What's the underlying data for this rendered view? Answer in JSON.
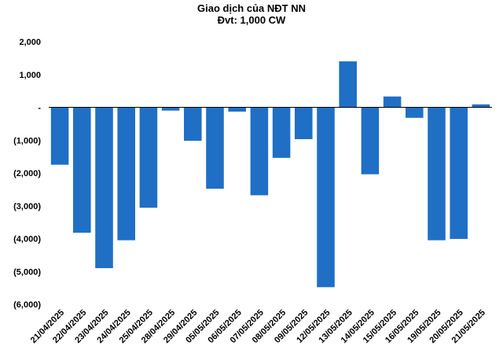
{
  "chart_data": {
    "type": "bar",
    "title": "Giao dịch của NĐT NN",
    "subtitle": "Đvt: 1,000 CW",
    "xlabel": "",
    "ylabel": "",
    "ylim": [
      -6000,
      2000
    ],
    "yticks": [
      2000,
      1000,
      0,
      -1000,
      -2000,
      -3000,
      -4000,
      -5000,
      -6000
    ],
    "ytick_labels": [
      "2,000",
      "1,000",
      "-",
      "(1,000)",
      "(2,000)",
      "(3,000)",
      "(4,000)",
      "(5,000)",
      "(6,000)"
    ],
    "grid": false,
    "legend": "none",
    "bar_color": "#1F6FC5",
    "categories": [
      "21/04/2025",
      "22/04/2025",
      "23/04/2025",
      "24/04/2025",
      "25/04/2025",
      "28/04/2025",
      "29/04/2025",
      "05/05/2025",
      "06/05/2025",
      "07/05/2025",
      "08/05/2025",
      "09/05/2025",
      "12/05/2025",
      "13/05/2025",
      "14/05/2025",
      "15/05/2025",
      "16/05/2025",
      "19/05/2025",
      "20/05/2025",
      "21/05/2025"
    ],
    "values": [
      -1750,
      -3820,
      -4900,
      -4050,
      -3060,
      -100,
      -1020,
      -2480,
      -130,
      -2680,
      -1540,
      -970,
      -5480,
      1400,
      -2040,
      330,
      -320,
      -4050,
      -4010,
      90
    ]
  }
}
